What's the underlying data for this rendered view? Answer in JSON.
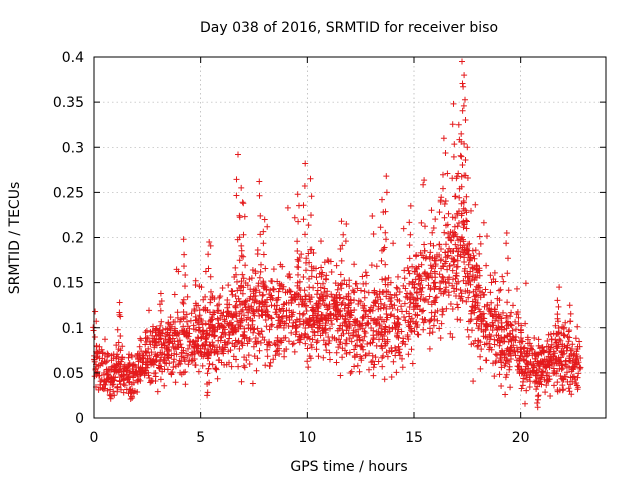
{
  "chart_data": {
    "type": "scatter",
    "title": "Day 038 of 2016, SRMTID for receiver biso",
    "xlabel": "GPS time / hours",
    "ylabel": "SRMTID / TECUs",
    "xlim": [
      0,
      24
    ],
    "ylim": [
      0,
      0.4
    ],
    "x_ticks": [
      0,
      5,
      10,
      15,
      20
    ],
    "x_tick_labels": [
      "0",
      "5",
      "10",
      "15",
      "20"
    ],
    "y_ticks": [
      0,
      0.05,
      0.1,
      0.15,
      0.2,
      0.25,
      0.3,
      0.35,
      0.4
    ],
    "y_tick_labels": [
      "0",
      "0.05",
      "0.1",
      "0.15",
      "0.2",
      "0.25",
      "0.3",
      "0.35",
      "0.4"
    ],
    "grid": true,
    "marker": "plus",
    "color": "#e41a1c",
    "data_extent": [
      0,
      22.8
    ],
    "trend_profile": [
      {
        "x": 0.0,
        "y": 0.055,
        "spread": 0.02
      },
      {
        "x": 1.0,
        "y": 0.05,
        "spread": 0.018
      },
      {
        "x": 2.0,
        "y": 0.05,
        "spread": 0.018
      },
      {
        "x": 3.0,
        "y": 0.075,
        "spread": 0.025
      },
      {
        "x": 4.0,
        "y": 0.085,
        "spread": 0.03
      },
      {
        "x": 5.0,
        "y": 0.09,
        "spread": 0.03
      },
      {
        "x": 6.0,
        "y": 0.095,
        "spread": 0.032
      },
      {
        "x": 7.0,
        "y": 0.11,
        "spread": 0.035
      },
      {
        "x": 8.0,
        "y": 0.11,
        "spread": 0.035
      },
      {
        "x": 9.0,
        "y": 0.115,
        "spread": 0.035
      },
      {
        "x": 10.0,
        "y": 0.115,
        "spread": 0.035
      },
      {
        "x": 11.0,
        "y": 0.115,
        "spread": 0.035
      },
      {
        "x": 12.0,
        "y": 0.105,
        "spread": 0.035
      },
      {
        "x": 13.0,
        "y": 0.105,
        "spread": 0.035
      },
      {
        "x": 14.0,
        "y": 0.11,
        "spread": 0.035
      },
      {
        "x": 15.0,
        "y": 0.125,
        "spread": 0.035
      },
      {
        "x": 16.0,
        "y": 0.155,
        "spread": 0.045
      },
      {
        "x": 17.0,
        "y": 0.185,
        "spread": 0.055
      },
      {
        "x": 18.0,
        "y": 0.125,
        "spread": 0.04
      },
      {
        "x": 19.0,
        "y": 0.085,
        "spread": 0.03
      },
      {
        "x": 20.0,
        "y": 0.07,
        "spread": 0.025
      },
      {
        "x": 21.0,
        "y": 0.055,
        "spread": 0.02
      },
      {
        "x": 22.0,
        "y": 0.07,
        "spread": 0.025
      },
      {
        "x": 22.8,
        "y": 0.06,
        "spread": 0.02
      }
    ],
    "spikes": [
      {
        "x": 0.05,
        "y": 0.118
      },
      {
        "x": 1.2,
        "y": 0.128
      },
      {
        "x": 4.2,
        "y": 0.198
      },
      {
        "x": 5.4,
        "y": 0.195
      },
      {
        "x": 6.75,
        "y": 0.292
      },
      {
        "x": 6.9,
        "y": 0.255
      },
      {
        "x": 7.0,
        "y": 0.238
      },
      {
        "x": 7.75,
        "y": 0.262
      },
      {
        "x": 8.0,
        "y": 0.22
      },
      {
        "x": 9.55,
        "y": 0.248
      },
      {
        "x": 9.9,
        "y": 0.282
      },
      {
        "x": 10.15,
        "y": 0.265
      },
      {
        "x": 11.6,
        "y": 0.218
      },
      {
        "x": 13.5,
        "y": 0.242
      },
      {
        "x": 13.7,
        "y": 0.268
      },
      {
        "x": 14.85,
        "y": 0.235
      },
      {
        "x": 16.4,
        "y": 0.31
      },
      {
        "x": 16.85,
        "y": 0.348
      },
      {
        "x": 17.25,
        "y": 0.395
      },
      {
        "x": 17.35,
        "y": 0.38
      },
      {
        "x": 17.3,
        "y": 0.367
      },
      {
        "x": 17.1,
        "y": 0.325
      },
      {
        "x": 17.5,
        "y": 0.3
      },
      {
        "x": 19.35,
        "y": 0.205
      },
      {
        "x": 21.8,
        "y": 0.145
      },
      {
        "x": 22.3,
        "y": 0.125
      },
      {
        "x": 20.8,
        "y": 0.012
      },
      {
        "x": 5.3,
        "y": 0.025
      }
    ]
  }
}
